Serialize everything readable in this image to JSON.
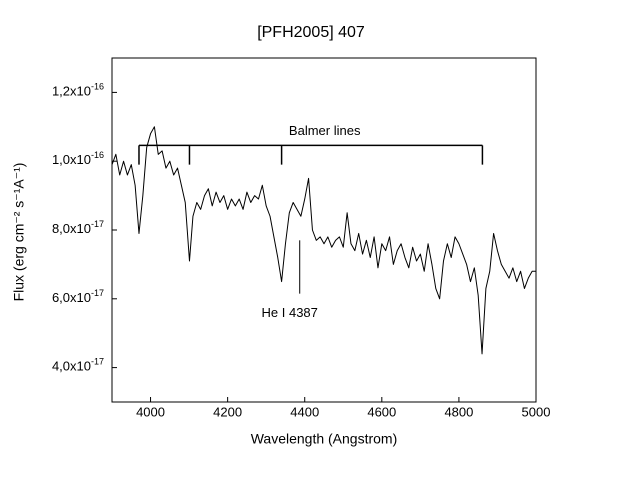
{
  "chart_data": {
    "type": "line",
    "title": "[PFH2005] 407",
    "x_label": "Wavelength (Angstrom)",
    "y_label": "Flux (erg cm⁻² s⁻¹A⁻¹)",
    "xlim": [
      3900,
      5000
    ],
    "ylim": [
      3e-17,
      1.3e-16
    ],
    "xticks": [
      4000,
      4200,
      4400,
      4600,
      4800,
      5000
    ],
    "yticks": [
      {
        "value": 4e-17,
        "label": "4,0x10-17"
      },
      {
        "value": 6e-17,
        "label": "6,0x10-17"
      },
      {
        "value": 8e-17,
        "label": "8,0x10-17"
      },
      {
        "value": 1e-16,
        "label": "1,0x10-16"
      },
      {
        "value": 1.2e-16,
        "label": "1,2x10-16"
      }
    ],
    "grid": false,
    "color": "#000000",
    "x": [
      3900,
      3910,
      3920,
      3930,
      3940,
      3950,
      3960,
      3970,
      3980,
      3990,
      4000,
      4010,
      4020,
      4030,
      4040,
      4050,
      4060,
      4070,
      4080,
      4090,
      4101,
      4110,
      4120,
      4130,
      4140,
      4150,
      4160,
      4170,
      4180,
      4190,
      4200,
      4210,
      4220,
      4230,
      4240,
      4250,
      4260,
      4270,
      4280,
      4290,
      4300,
      4310,
      4320,
      4330,
      4340,
      4350,
      4360,
      4370,
      4380,
      4390,
      4400,
      4410,
      4420,
      4430,
      4440,
      4450,
      4460,
      4470,
      4480,
      4490,
      4500,
      4510,
      4520,
      4530,
      4540,
      4550,
      4560,
      4570,
      4580,
      4590,
      4600,
      4610,
      4620,
      4630,
      4640,
      4650,
      4660,
      4670,
      4680,
      4690,
      4700,
      4710,
      4720,
      4730,
      4740,
      4750,
      4760,
      4770,
      4780,
      4790,
      4800,
      4810,
      4820,
      4830,
      4840,
      4850,
      4860,
      4870,
      4880,
      4890,
      4900,
      4910,
      4920,
      4930,
      4940,
      4950,
      4960,
      4970,
      4980,
      4990,
      5000
    ],
    "values": [
      9.9e-17,
      1.02e-16,
      9.6e-17,
      1e-16,
      9.6e-17,
      9.9e-17,
      9.3e-17,
      7.9e-17,
      9e-17,
      1.04e-16,
      1.08e-16,
      1.1e-16,
      1.02e-16,
      1.03e-16,
      9.8e-17,
      1e-16,
      9.6e-17,
      9.8e-17,
      9.3e-17,
      8.8e-17,
      7.1e-17,
      8.4e-17,
      8.8e-17,
      8.6e-17,
      9e-17,
      9.2e-17,
      8.7e-17,
      9.1e-17,
      8.8e-17,
      9e-17,
      8.6e-17,
      8.9e-17,
      8.7e-17,
      8.9e-17,
      8.6e-17,
      9.1e-17,
      8.8e-17,
      9e-17,
      8.9e-17,
      9.3e-17,
      8.7e-17,
      8.4e-17,
      7.8e-17,
      7.2e-17,
      6.5e-17,
      7.6e-17,
      8.5e-17,
      8.8e-17,
      8.6e-17,
      8.4e-17,
      8.9e-17,
      9.5e-17,
      8e-17,
      7.7e-17,
      7.8e-17,
      7.6e-17,
      7.8e-17,
      7.5e-17,
      7.7e-17,
      7.8e-17,
      7.5e-17,
      8.5e-17,
      7.6e-17,
      7.4e-17,
      7.9e-17,
      7.3e-17,
      7.7e-17,
      7.2e-17,
      7.8e-17,
      6.9e-17,
      7.6e-17,
      7.4e-17,
      7.8e-17,
      7e-17,
      7.4e-17,
      7.6e-17,
      7.2e-17,
      6.9e-17,
      7.5e-17,
      7.1e-17,
      7.3e-17,
      6.8e-17,
      7.6e-17,
      7e-17,
      6.3e-17,
      6e-17,
      7.1e-17,
      7.6e-17,
      7.2e-17,
      7.8e-17,
      7.6e-17,
      7.3e-17,
      7e-17,
      6.5e-17,
      6.9e-17,
      6.1e-17,
      4.4e-17,
      6.3e-17,
      6.8e-17,
      7.9e-17,
      7.4e-17,
      7e-17,
      6.8e-17,
      6.6e-17,
      6.9e-17,
      6.5e-17,
      6.8e-17,
      6.3e-17,
      6.6e-17,
      6.8e-17,
      6.8e-17
    ],
    "annotations": [
      {
        "text": "Balmer lines",
        "x": [
          3970,
          4101,
          4340,
          4861
        ],
        "y": 1.046e-16,
        "y_end": 9.9e-17
      },
      {
        "text": "He I 4387",
        "x": 4387,
        "y": 7.7e-17,
        "y_end": 6.15e-17
      }
    ]
  }
}
